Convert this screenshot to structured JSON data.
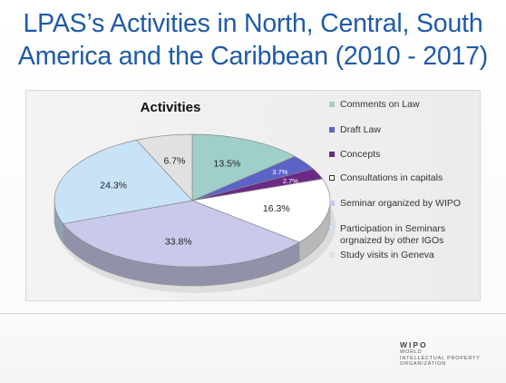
{
  "slide": {
    "title_line1": "LPAS’s Activities in North, Central, South",
    "title_line2": "America and the Caribbean (2010 - 2017)"
  },
  "chart_data": {
    "type": "pie",
    "title": "Activities",
    "legend_position": "right",
    "series": [
      {
        "name": "Comments on Law",
        "value": 13.5,
        "label": "13.5%",
        "color": "#9fcfc9"
      },
      {
        "name": "Draft Law",
        "value": 3.7,
        "label": "3.7%",
        "color": "#5b63c8"
      },
      {
        "name": "Concepts",
        "value": 2.7,
        "label": "2.7%",
        "color": "#6a2a86"
      },
      {
        "name": "Consultations in capitals",
        "value": 16.3,
        "label": "16.3%",
        "color": "#ffffff"
      },
      {
        "name": "Seminar organized by WIPO",
        "value": 33.8,
        "label": "33.8%",
        "color": "#c9c9eb"
      },
      {
        "name": "Participation in Seminars orgnaized by other IGOs",
        "value": 24.3,
        "label": "24.3%",
        "color": "#c8e2f7"
      },
      {
        "name": "Study visits in Geneva",
        "value": 6.7,
        "label": "6.7%",
        "color": "#e1e1e1"
      }
    ]
  },
  "legend": {
    "items": [
      {
        "line1": "Comments on Law",
        "line2": ""
      },
      {
        "line1": "Draft Law",
        "line2": ""
      },
      {
        "line1": "Concepts",
        "line2": ""
      },
      {
        "line1": "Consultations in capitals",
        "line2": ""
      },
      {
        "line1": "Seminar organized by WIPO",
        "line2": ""
      },
      {
        "line1": "Participation in Seminars",
        "line2": "orgnaized by other IGOs"
      },
      {
        "line1": "Study visits in Geneva",
        "line2": ""
      }
    ]
  },
  "logo": {
    "name": "WIPO",
    "line1": "WORLD",
    "line2": "INTELLECTUAL PROPERTY",
    "line3": "ORGANIZATION"
  }
}
